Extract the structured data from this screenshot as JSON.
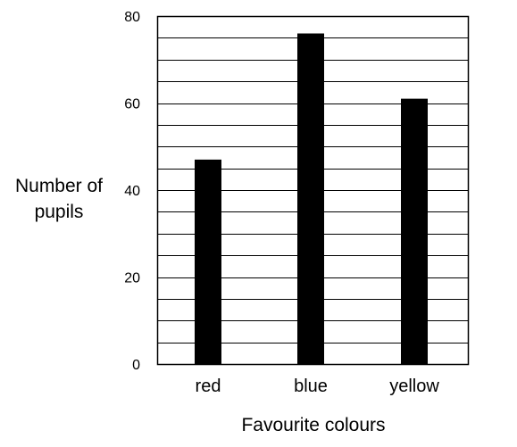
{
  "chart_data": {
    "type": "bar",
    "title": "",
    "categories": [
      "red",
      "blue",
      "yellow"
    ],
    "values": [
      47,
      76,
      61
    ],
    "ylim": [
      0,
      80
    ],
    "y_ticks": [
      0,
      20,
      40,
      60,
      80
    ],
    "y_minor_step": 5,
    "xlabel": "Favourite colours",
    "ylabel": [
      "Number of",
      "pupils"
    ],
    "grid": true,
    "legend": "none",
    "bar_color": "#000000",
    "grid_color": "#000000"
  }
}
